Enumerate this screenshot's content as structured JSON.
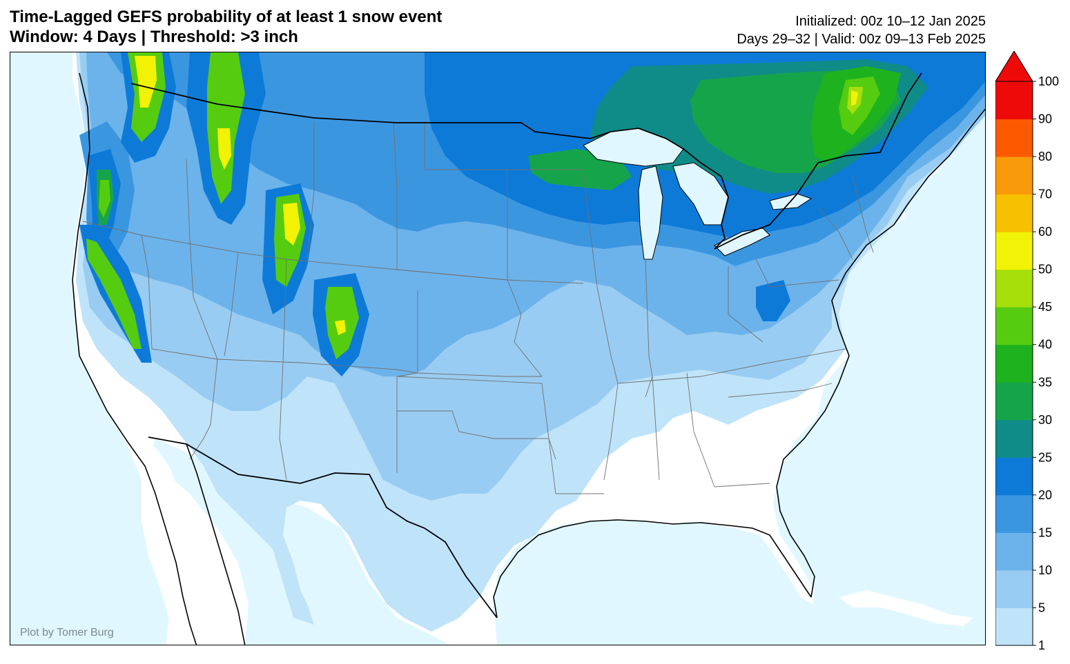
{
  "header": {
    "title_line1": "Time-Lagged GEFS probability of at least 1 snow event",
    "title_line2": "Window: 4 Days | Threshold: >3 inch",
    "initialized": "Initialized: 00z 10–12 Jan 2025",
    "valid": "Days 29–32 | Valid: 00z 09–13 Feb 2025"
  },
  "credit": "Plot by Tomer Burg",
  "colors": {
    "ocean": "#e0f7ff",
    "land": "#ffffff",
    "border": "#000000",
    "state_lines": "#707070"
  },
  "colorbar": {
    "labels": [
      "1",
      "5",
      "10",
      "15",
      "20",
      "25",
      "30",
      "35",
      "40",
      "45",
      "50",
      "60",
      "70",
      "80",
      "90",
      "100"
    ],
    "colors": [
      "#bfe3f9",
      "#99ccf2",
      "#6cb3eb",
      "#3b96e0",
      "#0d7ad8",
      "#0f8c88",
      "#16a44a",
      "#1eb21e",
      "#56cc10",
      "#a6df0a",
      "#f1f205",
      "#f7c000",
      "#f99a0b",
      "#fb5a00",
      "#ef0a0a"
    ],
    "extend_color": "#ef0a0a"
  }
}
